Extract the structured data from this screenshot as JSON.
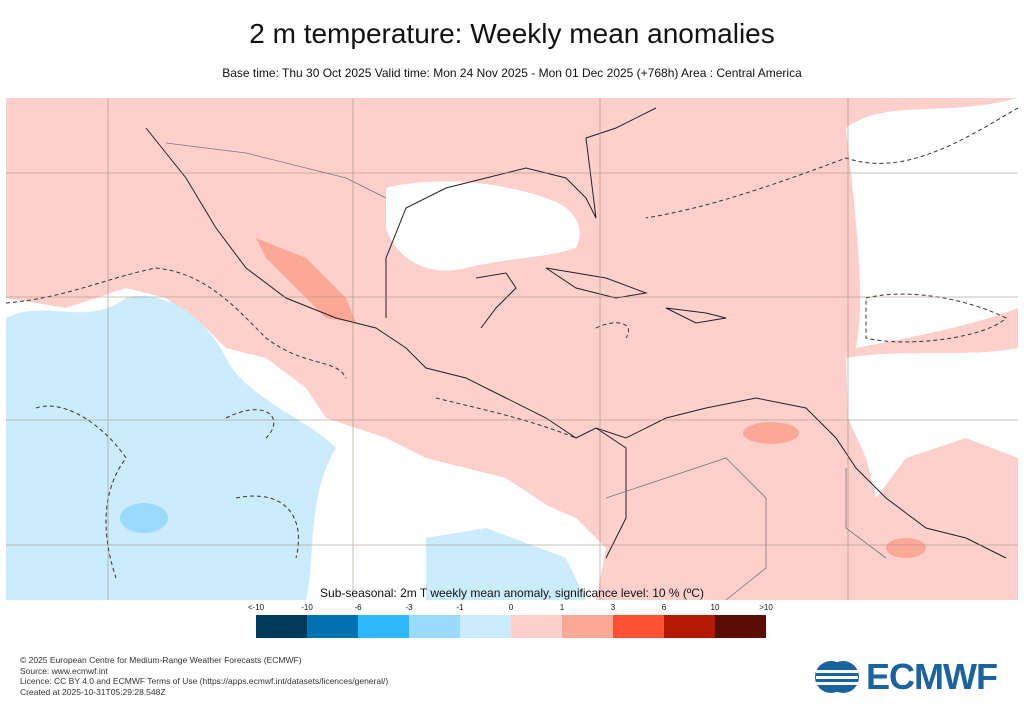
{
  "title": "2 m temperature: Weekly mean anomalies",
  "subtitle": "Base time: Thu 30 Oct 2025 Valid time: Mon 24 Nov 2025 - Mon 01 Dec 2025 (+768h) Area : Central America",
  "colorbar": {
    "title": "Sub-seasonal: 2m T weekly mean anomaly, significance level: 10 % (ºC)",
    "ticks": [
      "<-10",
      "-10",
      "-6",
      "-3",
      "-1",
      "0",
      "1",
      "3",
      "6",
      "10",
      ">10"
    ],
    "colors": [
      "#003a5c",
      "#0073b0",
      "#2eb8fd",
      "#99dafd",
      "#cbecfc",
      "#fdd0cc",
      "#fca897",
      "#fe5033",
      "#b31904",
      "#5b0c03"
    ]
  },
  "footer": {
    "lines": [
      "© 2025 European Centre for Medium-Range Weather Forecasts (ECMWF)",
      "Source: www.ecmwf.int",
      "Licence: CC BY 4.0 and ECMWF Terms of Use (https://apps.ecmwf.int/datasets/licences/general/)",
      "Created at 2025-10-31T05:29:28.548Z"
    ]
  },
  "logo": {
    "text": "ECMWF",
    "color": "#1a62a0"
  }
}
